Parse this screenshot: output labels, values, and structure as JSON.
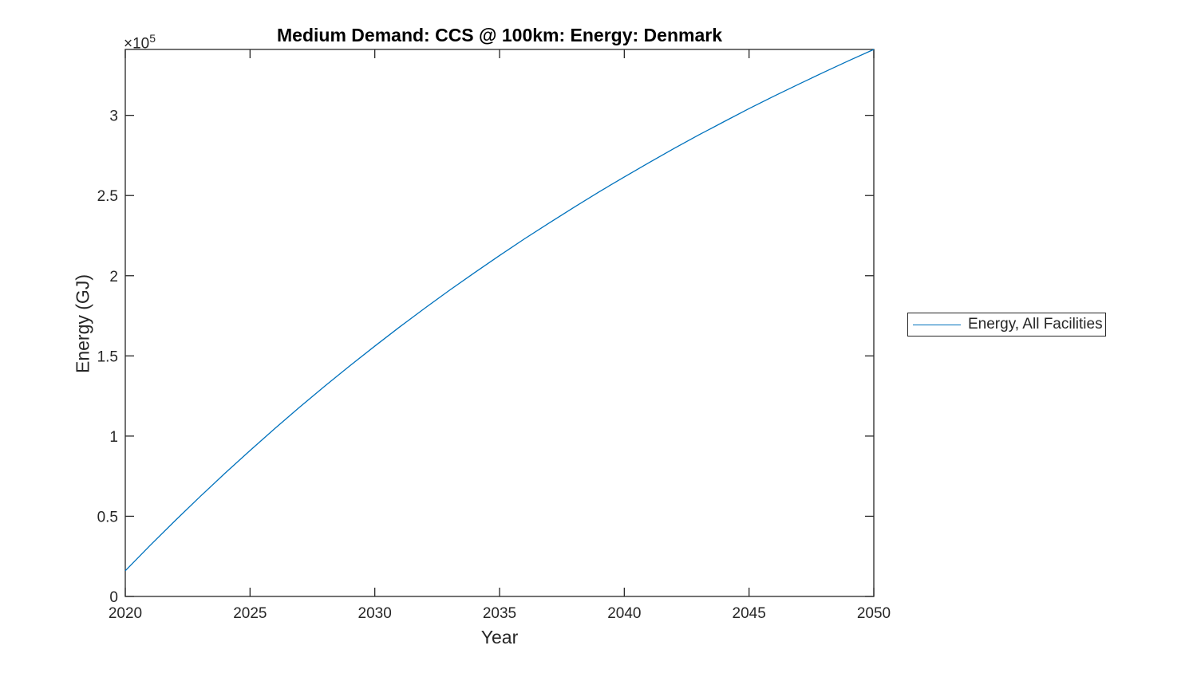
{
  "chart_data": {
    "type": "line",
    "title": "Medium Demand: CCS @ 100km: Energy: Denmark",
    "xlabel": "Year",
    "ylabel": "Energy (GJ)",
    "y_axis_multiplier": {
      "base": "×10",
      "exponent": "5"
    },
    "axis_color": "#262626",
    "grid": false,
    "xlim": [
      2020,
      2050
    ],
    "ylim": [
      0,
      341100
    ],
    "xticks": [
      2020,
      2025,
      2030,
      2035,
      2040,
      2045,
      2050
    ],
    "xtick_labels": [
      "2020",
      "2025",
      "2030",
      "2035",
      "2040",
      "2045",
      "2050"
    ],
    "yticks": [
      0,
      50000,
      100000,
      150000,
      200000,
      250000,
      300000
    ],
    "ytick_labels": [
      "0",
      "0.5",
      "1",
      "1.5",
      "2",
      "2.5",
      "3"
    ],
    "legend": {
      "position": "right-outside",
      "entries": [
        {
          "label": "Energy, All Facilities",
          "color": "#0072BD"
        }
      ]
    },
    "x": [
      2020,
      2021,
      2022,
      2023,
      2024,
      2025,
      2026,
      2027,
      2028,
      2029,
      2030,
      2031,
      2032,
      2033,
      2034,
      2035,
      2036,
      2037,
      2038,
      2039,
      2040,
      2041,
      2042,
      2043,
      2044,
      2045,
      2046,
      2047,
      2048,
      2049,
      2050
    ],
    "series": [
      {
        "name": "Energy, All Facilities",
        "color": "#0072BD",
        "values": [
          16000,
          31900,
          47300,
          62300,
          76900,
          91000,
          104800,
          118200,
          131200,
          143800,
          156100,
          168100,
          179700,
          191000,
          201900,
          212600,
          223000,
          233000,
          242800,
          252400,
          261600,
          270600,
          279400,
          287900,
          296100,
          304200,
          312000,
          319500,
          326900,
          334100,
          341100
        ]
      }
    ]
  }
}
